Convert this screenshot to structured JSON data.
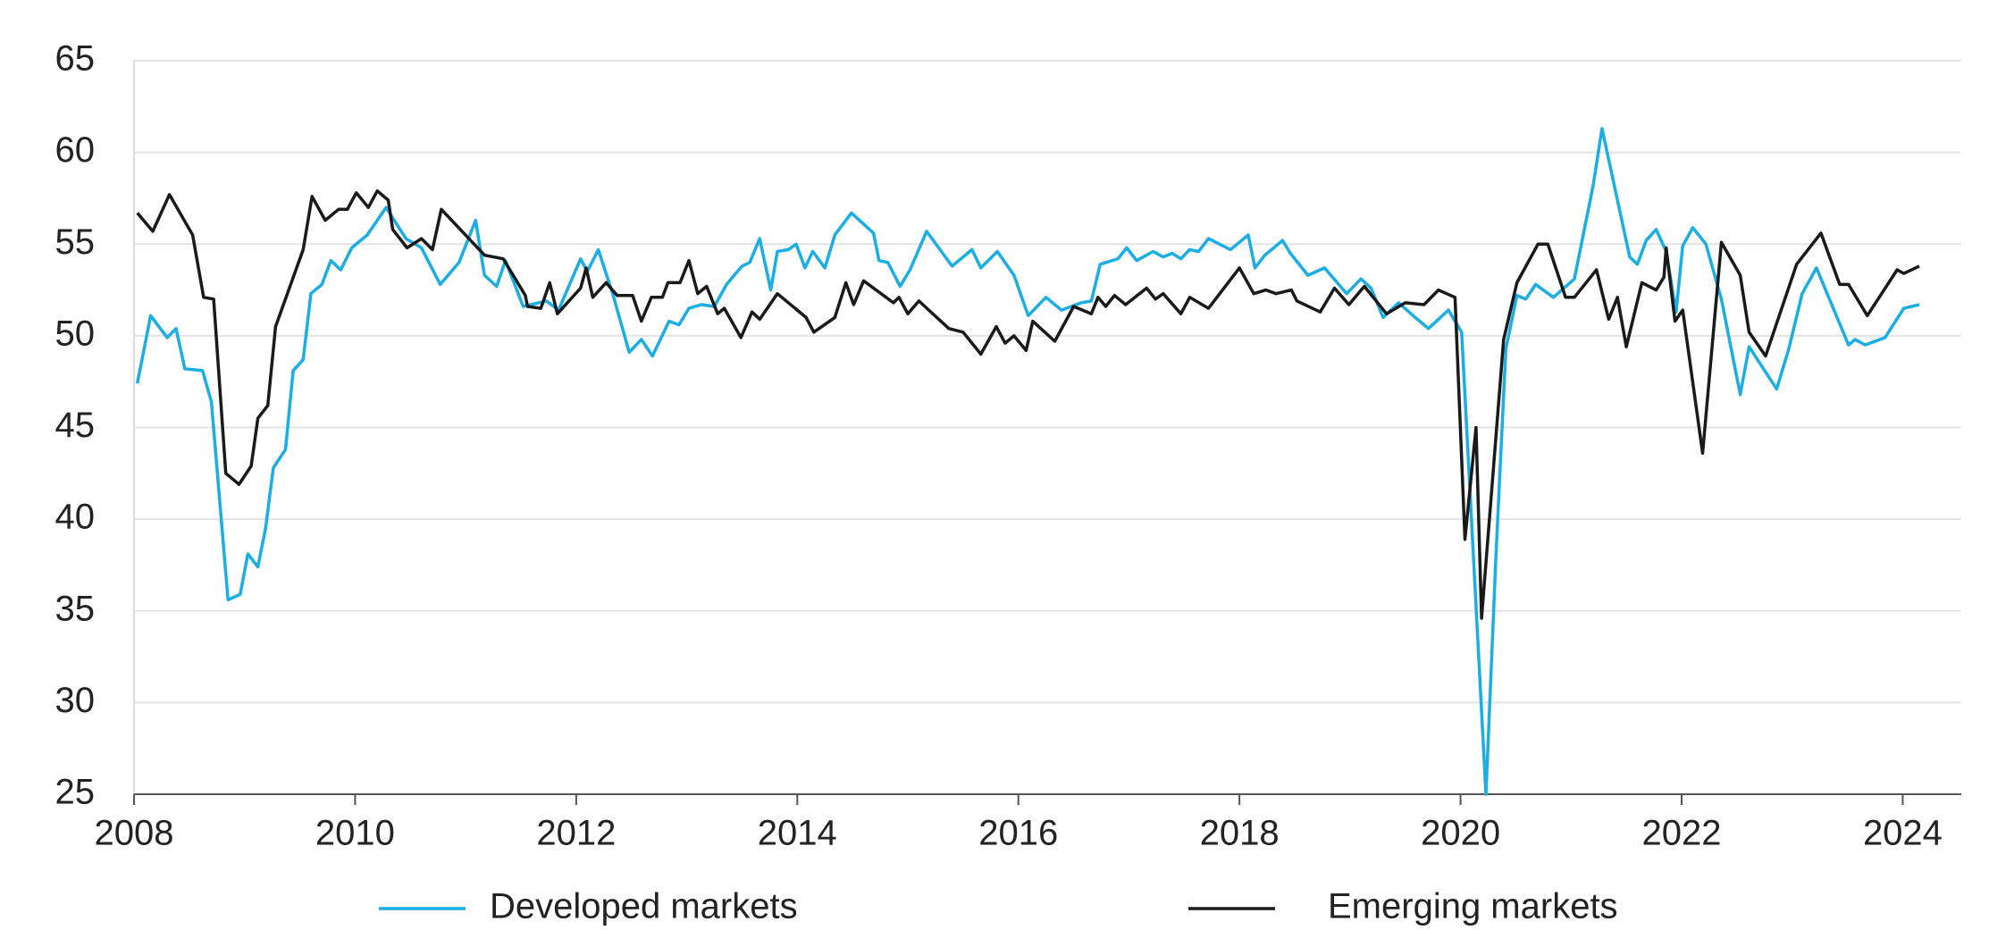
{
  "chart_data": {
    "type": "line",
    "xlim": [
      2008,
      2024.53
    ],
    "xticks": [
      2008,
      2010,
      2012,
      2014,
      2016,
      2018,
      2020,
      2022,
      2024
    ],
    "ylim": [
      25,
      65
    ],
    "yticks": [
      25,
      30,
      35,
      40,
      45,
      50,
      55,
      60,
      65
    ],
    "grid": true,
    "legend": "bottom",
    "series": [
      {
        "name": "Developed markets",
        "color": "#1aaee5",
        "x": [
          2008.03,
          2008.15,
          2008.3,
          2008.38,
          2008.46,
          2008.62,
          2008.7,
          2008.85,
          2008.96,
          2009.03,
          2009.12,
          2009.19,
          2009.26,
          2009.37,
          2009.44,
          2009.53,
          2009.6,
          2009.7,
          2009.78,
          2009.87,
          2009.97,
          2010.11,
          2010.28,
          2010.46,
          2010.6,
          2010.77,
          2010.94,
          2011.09,
          2011.17,
          2011.28,
          2011.36,
          2011.52,
          2011.73,
          2011.84,
          2012.04,
          2012.1,
          2012.2,
          2012.33,
          2012.48,
          2012.59,
          2012.69,
          2012.84,
          2012.93,
          2013.02,
          2013.13,
          2013.25,
          2013.36,
          2013.5,
          2013.57,
          2013.66,
          2013.76,
          2013.82,
          2013.92,
          2013.99,
          2014.07,
          2014.14,
          2014.25,
          2014.34,
          2014.49,
          2014.69,
          2014.74,
          2014.82,
          2014.93,
          2015.02,
          2015.17,
          2015.4,
          2015.58,
          2015.66,
          2015.81,
          2015.96,
          2016.09,
          2016.25,
          2016.39,
          2016.57,
          2016.66,
          2016.74,
          2016.9,
          2016.98,
          2017.07,
          2017.22,
          2017.31,
          2017.39,
          2017.47,
          2017.55,
          2017.63,
          2017.72,
          2017.92,
          2018.08,
          2018.14,
          2018.23,
          2018.39,
          2018.46,
          2018.62,
          2018.77,
          2018.97,
          2019.1,
          2019.19,
          2019.3,
          2019.44,
          2019.59,
          2019.71,
          2019.89,
          2020.01,
          2020.23,
          2020.32,
          2020.41,
          2020.51,
          2020.59,
          2020.68,
          2020.84,
          2021.03,
          2021.2,
          2021.28,
          2021.53,
          2021.6,
          2021.68,
          2021.77,
          2021.86,
          2021.95,
          2022.01,
          2022.1,
          2022.22,
          2022.36,
          2022.53,
          2022.61,
          2022.86,
          2022.97,
          2023.09,
          2023.22,
          2023.51,
          2023.57,
          2023.66,
          2023.84,
          2024.01,
          2024.15
        ],
        "values": [
          47.4,
          51.1,
          49.9,
          50.4,
          48.2,
          48.1,
          46.4,
          35.6,
          35.9,
          38.1,
          37.4,
          39.5,
          42.8,
          43.8,
          48.1,
          48.7,
          52.3,
          52.8,
          54.1,
          53.6,
          54.8,
          55.5,
          57.0,
          55.3,
          54.8,
          52.8,
          54.0,
          56.3,
          53.3,
          52.7,
          54.1,
          51.6,
          51.9,
          51.4,
          54.2,
          53.5,
          54.7,
          52.3,
          49.1,
          49.8,
          48.9,
          50.8,
          50.6,
          51.5,
          51.7,
          51.6,
          52.8,
          53.8,
          54.0,
          55.3,
          52.5,
          54.6,
          54.7,
          55.0,
          53.7,
          54.6,
          53.7,
          55.5,
          56.7,
          55.6,
          54.1,
          54.0,
          52.7,
          53.6,
          55.7,
          53.8,
          54.7,
          53.7,
          54.6,
          53.3,
          51.1,
          52.1,
          51.4,
          51.8,
          51.9,
          53.9,
          54.2,
          54.8,
          54.1,
          54.6,
          54.3,
          54.5,
          54.2,
          54.7,
          54.6,
          55.3,
          54.7,
          55.5,
          53.7,
          54.4,
          55.2,
          54.5,
          53.3,
          53.7,
          52.3,
          53.1,
          52.6,
          51.0,
          51.8,
          51.0,
          50.4,
          51.4,
          50.2,
          25.0,
          38.0,
          49.3,
          52.2,
          52.0,
          52.8,
          52.1,
          53.1,
          58.2,
          61.3,
          54.3,
          53.9,
          55.2,
          55.8,
          54.6,
          51.3,
          54.9,
          55.9,
          55.0,
          52.0,
          46.8,
          49.4,
          47.1,
          49.3,
          52.3,
          53.7,
          49.5,
          49.8,
          49.5,
          49.9,
          51.5,
          51.7
        ]
      },
      {
        "name": "Emerging markets",
        "color": "#1a1a1a",
        "x": [
          2008.03,
          2008.17,
          2008.32,
          2008.53,
          2008.63,
          2008.72,
          2008.83,
          2008.95,
          2009.06,
          2009.12,
          2009.21,
          2009.28,
          2009.53,
          2009.61,
          2009.73,
          2009.85,
          2009.93,
          2010.01,
          2010.12,
          2010.2,
          2010.3,
          2010.34,
          2010.47,
          2010.6,
          2010.7,
          2010.78,
          2011.17,
          2011.34,
          2011.54,
          2011.56,
          2011.68,
          2011.76,
          2011.83,
          2012.04,
          2012.09,
          2012.15,
          2012.27,
          2012.37,
          2012.51,
          2012.59,
          2012.68,
          2012.78,
          2012.83,
          2012.94,
          2013.02,
          2013.1,
          2013.18,
          2013.28,
          2013.34,
          2013.49,
          2013.59,
          2013.66,
          2013.82,
          2014.08,
          2014.15,
          2014.34,
          2014.44,
          2014.51,
          2014.6,
          2014.87,
          2014.92,
          2015.0,
          2015.1,
          2015.37,
          2015.5,
          2015.66,
          2015.8,
          2015.88,
          2015.96,
          2016.07,
          2016.13,
          2016.33,
          2016.5,
          2016.66,
          2016.72,
          2016.79,
          2016.87,
          2016.97,
          2017.16,
          2017.24,
          2017.31,
          2017.47,
          2017.55,
          2017.72,
          2018.0,
          2018.13,
          2018.24,
          2018.33,
          2018.47,
          2018.52,
          2018.73,
          2018.86,
          2018.99,
          2019.13,
          2019.33,
          2019.5,
          2019.67,
          2019.8,
          2019.95,
          2020.04,
          2020.14,
          2020.19,
          2020.39,
          2020.51,
          2020.7,
          2020.79,
          2020.95,
          2021.03,
          2021.23,
          2021.34,
          2021.42,
          2021.5,
          2021.64,
          2021.77,
          2021.84,
          2021.86,
          2021.94,
          2022.01,
          2022.19,
          2022.36,
          2022.53,
          2022.61,
          2022.76,
          2023.04,
          2023.26,
          2023.43,
          2023.51,
          2023.68,
          2023.95,
          2024.01,
          2024.15
        ],
        "values": [
          56.7,
          55.7,
          57.7,
          55.5,
          52.1,
          52.0,
          42.5,
          41.9,
          42.9,
          45.5,
          46.2,
          50.5,
          54.7,
          57.6,
          56.3,
          56.9,
          56.9,
          57.8,
          57.0,
          57.9,
          57.4,
          55.8,
          54.8,
          55.3,
          54.7,
          56.9,
          54.4,
          54.2,
          52.2,
          51.6,
          51.5,
          52.9,
          51.2,
          52.6,
          53.7,
          52.1,
          52.9,
          52.2,
          52.2,
          50.8,
          52.1,
          52.1,
          52.9,
          52.9,
          54.1,
          52.3,
          52.7,
          51.2,
          51.5,
          49.9,
          51.3,
          50.9,
          52.3,
          51.0,
          50.2,
          51.0,
          52.9,
          51.7,
          53.0,
          51.8,
          52.1,
          51.2,
          51.9,
          50.4,
          50.2,
          49.0,
          50.5,
          49.6,
          50.0,
          49.2,
          50.8,
          49.7,
          51.6,
          51.2,
          52.1,
          51.6,
          52.2,
          51.7,
          52.6,
          52.0,
          52.3,
          51.2,
          52.1,
          51.5,
          53.7,
          52.3,
          52.5,
          52.3,
          52.5,
          51.9,
          51.3,
          52.6,
          51.7,
          52.7,
          51.2,
          51.8,
          51.7,
          52.5,
          52.1,
          38.9,
          45.0,
          34.6,
          49.8,
          52.9,
          55.0,
          55.0,
          52.1,
          52.1,
          53.6,
          50.9,
          52.1,
          49.4,
          52.9,
          52.5,
          53.2,
          54.8,
          50.8,
          51.4,
          43.6,
          55.1,
          53.3,
          50.2,
          48.9,
          53.9,
          55.6,
          52.8,
          52.8,
          51.1,
          53.6,
          53.4,
          53.8
        ]
      }
    ]
  }
}
